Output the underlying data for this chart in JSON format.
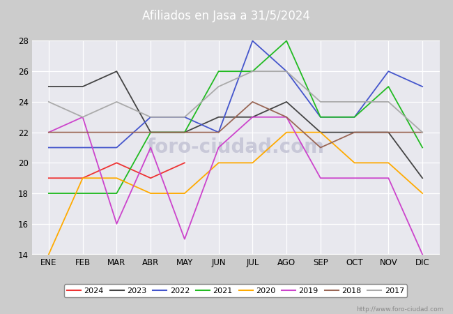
{
  "title": "Afiliados en Jasa a 31/5/2024",
  "ylim": [
    14,
    28
  ],
  "yticks": [
    14,
    16,
    18,
    20,
    22,
    24,
    26,
    28
  ],
  "months": [
    "ENE",
    "FEB",
    "MAR",
    "ABR",
    "MAY",
    "JUN",
    "JUL",
    "AGO",
    "SEP",
    "OCT",
    "NOV",
    "DIC"
  ],
  "series": {
    "2024": {
      "color": "#ee3333",
      "data": [
        19,
        19,
        20,
        19,
        20,
        null,
        null,
        null,
        null,
        null,
        null,
        null
      ]
    },
    "2023": {
      "color": "#444444",
      "data": [
        25,
        25,
        26,
        22,
        22,
        23,
        23,
        24,
        22,
        22,
        22,
        19
      ]
    },
    "2022": {
      "color": "#4455cc",
      "data": [
        21,
        21,
        21,
        23,
        23,
        22,
        28,
        26,
        23,
        23,
        26,
        25
      ]
    },
    "2021": {
      "color": "#22bb22",
      "data": [
        18,
        18,
        18,
        22,
        22,
        26,
        26,
        28,
        23,
        23,
        25,
        21
      ]
    },
    "2020": {
      "color": "#ffaa00",
      "data": [
        14,
        19,
        19,
        18,
        18,
        20,
        20,
        22,
        22,
        20,
        20,
        18
      ]
    },
    "2019": {
      "color": "#cc44cc",
      "data": [
        22,
        23,
        16,
        21,
        15,
        21,
        23,
        23,
        19,
        19,
        19,
        14
      ]
    },
    "2018": {
      "color": "#996655",
      "data": [
        22,
        22,
        22,
        22,
        22,
        22,
        24,
        23,
        21,
        22,
        22,
        22
      ]
    },
    "2017": {
      "color": "#aaaaaa",
      "data": [
        24,
        23,
        24,
        23,
        23,
        25,
        26,
        26,
        24,
        24,
        24,
        22
      ]
    }
  },
  "legend_order": [
    "2024",
    "2023",
    "2022",
    "2021",
    "2020",
    "2019",
    "2018",
    "2017"
  ],
  "url_text": "http://www.foro-ciudad.com",
  "header_color": "#5b7fbf",
  "plot_bg": "#e8e8ee",
  "fig_bg": "#cccccc",
  "watermark_text": "foro-ciudad.com",
  "watermark_color": "#c8c8d8"
}
